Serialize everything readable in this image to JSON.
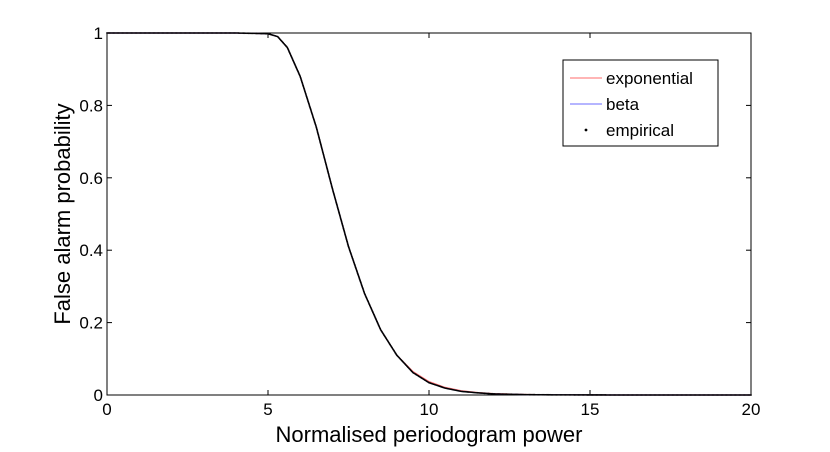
{
  "chart_data": {
    "type": "line",
    "title": "",
    "xlabel": "Normalised periodogram power",
    "ylabel": "False alarm probability",
    "xlim": [
      0,
      20
    ],
    "ylim": [
      0,
      1
    ],
    "xticks": [
      0,
      5,
      10,
      15,
      20
    ],
    "yticks": [
      0,
      0.2,
      0.4,
      0.6,
      0.8,
      1
    ],
    "ytick_labels": [
      "0",
      "0.2",
      "0.4",
      "0.6",
      "0.8",
      "1"
    ],
    "grid": false,
    "legend_position": "top-right",
    "series": [
      {
        "name": "exponential",
        "style": "line",
        "color": "#ff6b6b",
        "x": [
          0,
          4,
          5,
          5.3,
          5.6,
          6,
          6.5,
          7,
          7.5,
          8,
          8.5,
          9,
          9.5,
          10,
          10.5,
          11,
          11.5,
          12,
          13,
          14,
          16,
          20
        ],
        "y": [
          1,
          1,
          0.998,
          0.99,
          0.96,
          0.88,
          0.74,
          0.57,
          0.41,
          0.28,
          0.18,
          0.11,
          0.065,
          0.037,
          0.021,
          0.012,
          0.007,
          0.004,
          0.0013,
          0.0004,
          5e-05,
          0
        ]
      },
      {
        "name": "beta",
        "style": "line",
        "color": "#6b6bff",
        "x": [
          0,
          4,
          5,
          5.3,
          5.6,
          6,
          6.5,
          7,
          7.5,
          8,
          8.5,
          9,
          9.5,
          10,
          10.5,
          11,
          11.5,
          12,
          13,
          14,
          16,
          20
        ],
        "y": [
          1,
          1,
          0.998,
          0.99,
          0.96,
          0.88,
          0.74,
          0.57,
          0.41,
          0.28,
          0.18,
          0.11,
          0.062,
          0.034,
          0.019,
          0.01,
          0.006,
          0.003,
          0.001,
          0.0003,
          3e-05,
          0
        ]
      },
      {
        "name": "empirical",
        "style": "dots",
        "color": "#000000",
        "x": [
          0,
          4,
          5,
          5.3,
          5.6,
          6,
          6.5,
          7,
          7.5,
          8,
          8.5,
          9,
          9.5,
          10,
          10.5,
          11,
          11.5,
          12,
          13,
          14,
          16,
          20
        ],
        "y": [
          1,
          1,
          0.998,
          0.99,
          0.96,
          0.88,
          0.74,
          0.57,
          0.41,
          0.28,
          0.18,
          0.11,
          0.062,
          0.034,
          0.019,
          0.01,
          0.006,
          0.003,
          0.001,
          0.0003,
          3e-05,
          0
        ]
      }
    ]
  }
}
